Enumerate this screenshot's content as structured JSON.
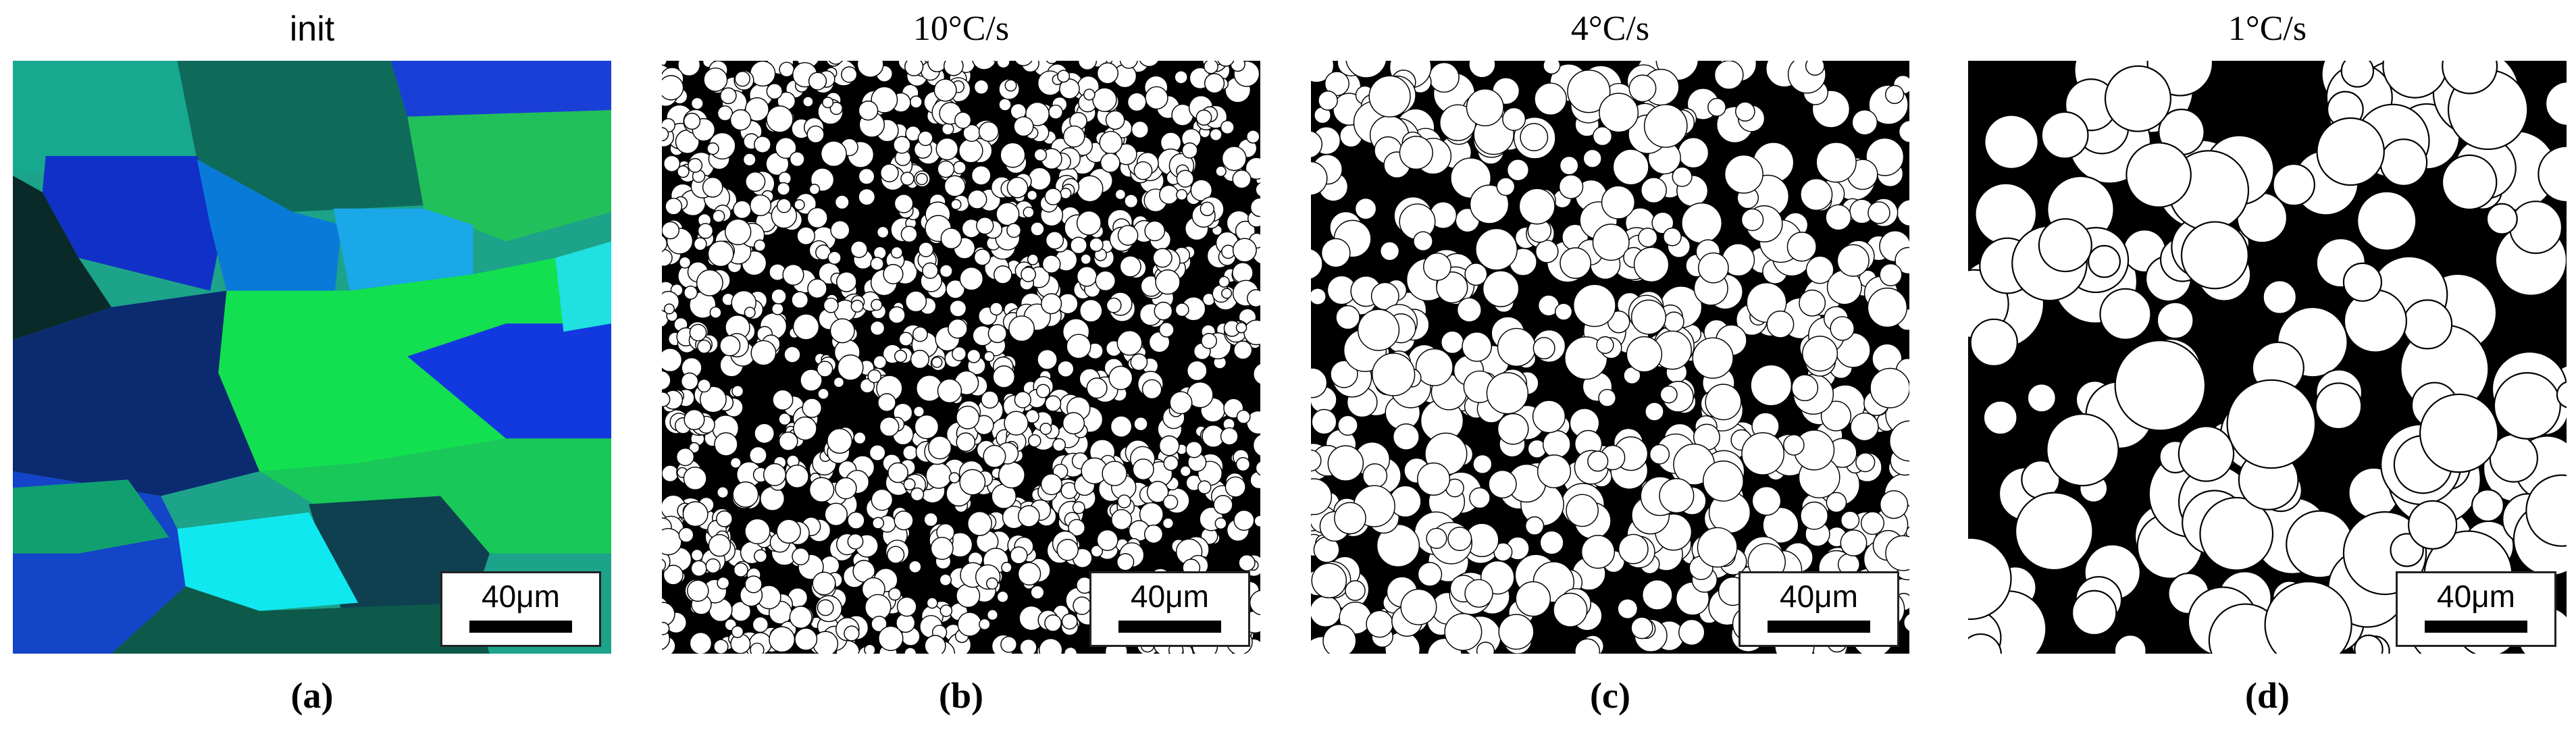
{
  "panels": [
    {
      "title": "init",
      "scale_bar": "40μm",
      "label": "(a)"
    },
    {
      "title": "10°C/s",
      "scale_bar": "40μm",
      "label": "(b)"
    },
    {
      "title": "4°C/s",
      "scale_bar": "40μm",
      "label": "(c)"
    },
    {
      "title": "1°C/s",
      "scale_bar": "40μm",
      "label": "(d)"
    }
  ]
}
